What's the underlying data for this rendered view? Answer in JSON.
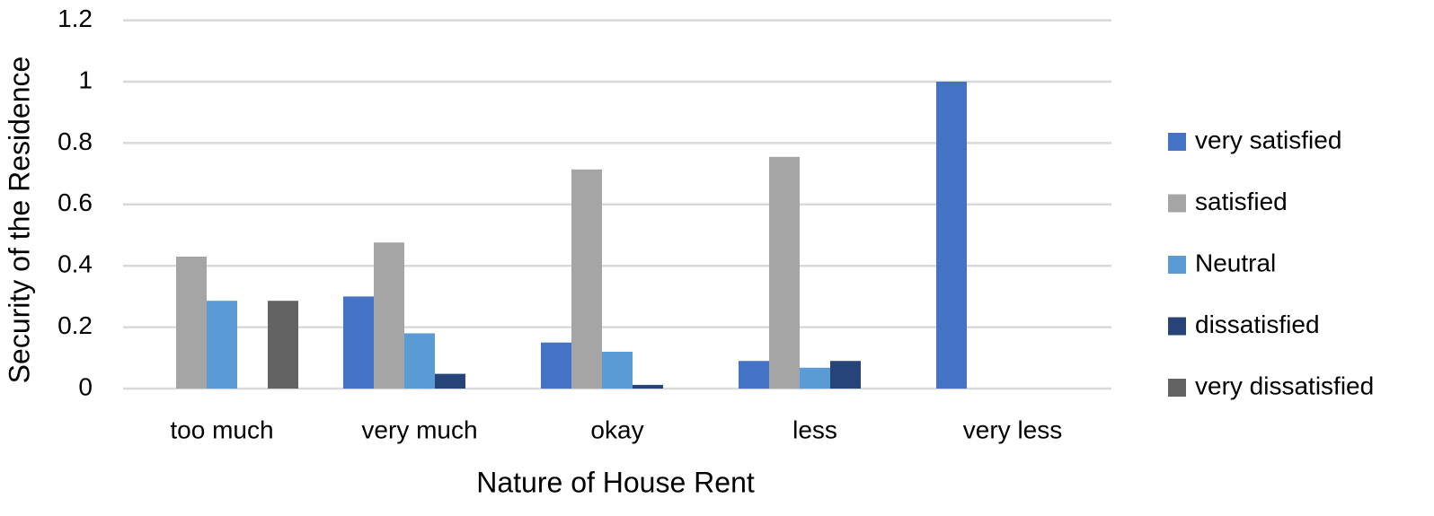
{
  "chart_data": {
    "type": "bar",
    "x_label": "Nature of House Rent",
    "y_label": "Security of the Residence",
    "categories": [
      "too much",
      "very much",
      "okay",
      "less",
      "very less"
    ],
    "series": [
      {
        "name": "very satisfied",
        "color": "#4472c4",
        "values": [
          0,
          0.3,
          0.15,
          0.09,
          1
        ]
      },
      {
        "name": "satisfied",
        "color": "#a5a5a5",
        "values": [
          0.43,
          0.476,
          0.714,
          0.755,
          0
        ]
      },
      {
        "name": "Neutral",
        "color": "#5b9bd5",
        "values": [
          0.286,
          0.18,
          0.12,
          0.068,
          0
        ]
      },
      {
        "name": "dissatisfied",
        "color": "#264478",
        "values": [
          0,
          0.048,
          0.012,
          0.09,
          0
        ]
      },
      {
        "name": "very dissatisfied",
        "color": "#636363",
        "values": [
          0.286,
          0,
          0,
          0,
          0
        ]
      }
    ],
    "ylim": [
      0,
      1.2
    ],
    "yticks": [
      0,
      0.2,
      0.4,
      0.6,
      0.8,
      1,
      1.2
    ],
    "grid": true,
    "legend": "right"
  }
}
